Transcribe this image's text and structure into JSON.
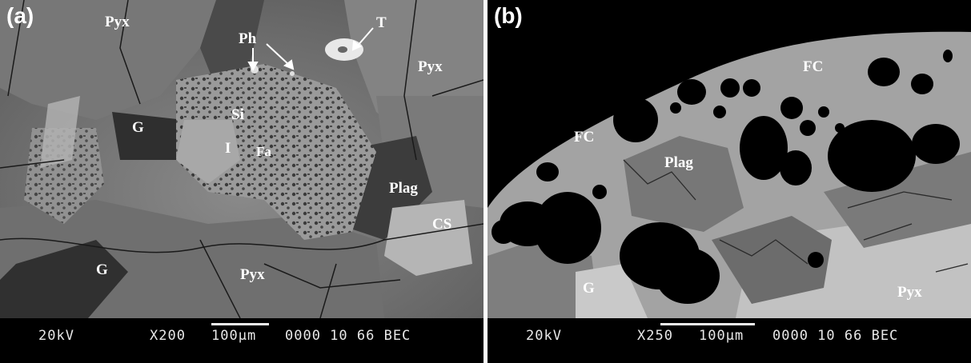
{
  "panels": [
    {
      "letter": "(a)",
      "labels": {
        "pyx_top_left": "Pyx",
        "ph": "Ph",
        "t": "T",
        "pyx_top_right": "Pyx",
        "si": "Si",
        "g_mid": "G",
        "i": "I",
        "fa": "Fa",
        "plag": "Plag",
        "cs": "CS",
        "g_bottom": "G",
        "pyx_bottom": "Pyx"
      },
      "info": {
        "voltage": "20kV",
        "magnification": "X200",
        "scale": "100µm",
        "code": "0000 10 66 BEC"
      }
    },
    {
      "letter": "(b)",
      "labels": {
        "fc_top": "FC",
        "fc_left": "FC",
        "plag": "Plag",
        "g": "G",
        "pyx": "Pyx"
      },
      "info": {
        "voltage": "20kV",
        "magnification": "X250",
        "scale": "100µm",
        "code": "0000 10 66 BEC"
      }
    }
  ]
}
